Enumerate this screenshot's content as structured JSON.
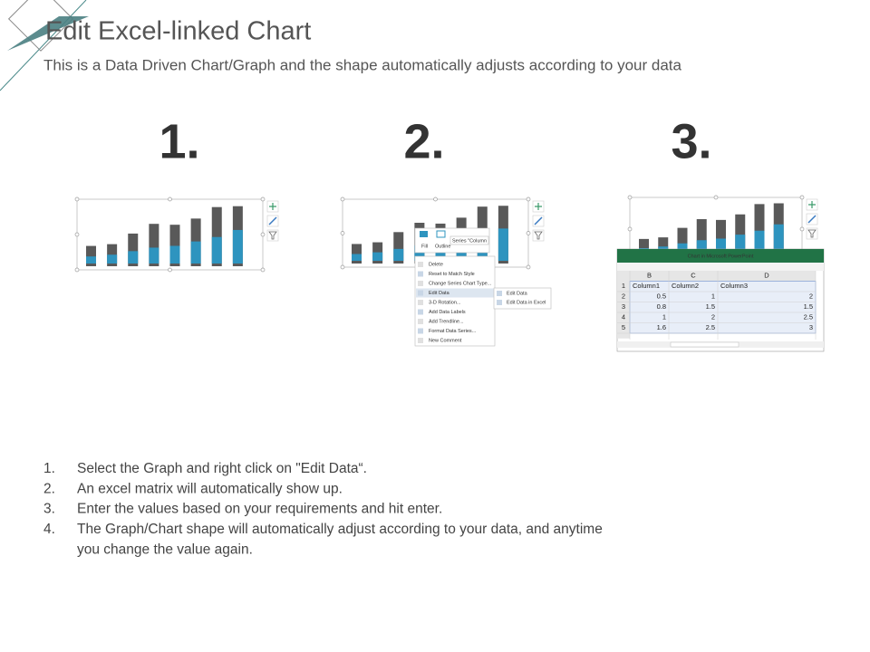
{
  "header": {
    "title": "Edit Excel-linked Chart",
    "subtitle": "This is a Data Driven Chart/Graph and the shape automatically adjusts according to your data"
  },
  "steps": [
    "1.",
    "2.",
    "3."
  ],
  "context_menu": {
    "toolbar": [
      "Fill",
      "Outline",
      "Series \"Column"
    ],
    "items": [
      "Delete",
      "Reset to Match Style",
      "Change Series Chart Type...",
      "Edit Data",
      "3-D Rotation...",
      "Add Data Labels",
      "Add Trendline...",
      "Format Data Series...",
      "New Comment"
    ],
    "submenu": [
      "Edit Data",
      "Edit Data in Excel"
    ]
  },
  "excel": {
    "title": "Chart in Microsoft PowerPoint",
    "columns": [
      "B",
      "C",
      "D"
    ],
    "row_numbers": [
      1,
      2,
      3,
      4,
      5
    ],
    "rows": [
      [
        "Column1",
        "Column2",
        "Column3"
      ],
      [
        0.5,
        1,
        2
      ],
      [
        0.8,
        1.5,
        1.5
      ],
      [
        1,
        2,
        2.5
      ],
      [
        1.6,
        2.5,
        3
      ]
    ]
  },
  "instructions": [
    {
      "marker": "1.",
      "text": "Select the Graph and right click on \"Edit Data“."
    },
    {
      "marker": "2.",
      "text": "An excel matrix will automatically show up."
    },
    {
      "marker": "3.",
      "text": "Enter the values based on your requirements and hit enter."
    },
    {
      "marker": "4.",
      "text": "The Graph/Chart shape will automatically adjust according to your data, and anytime you change the value again."
    }
  ]
}
